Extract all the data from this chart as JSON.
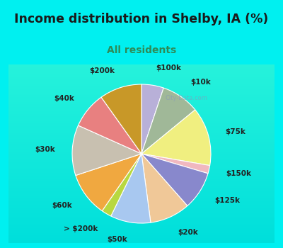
{
  "title": "Income distribution in Shelby, IA (%)",
  "subtitle": "All residents",
  "title_color": "#1a1a1a",
  "subtitle_color": "#2e8b57",
  "bg_cyan": "#00f0f0",
  "bg_chart": "#d8f0e0",
  "watermark": "City-Data.com",
  "slices": [
    {
      "label": "$100k",
      "value": 5.5,
      "color": "#b8b0d8"
    },
    {
      "label": "$10k",
      "value": 9.5,
      "color": "#a0b898"
    },
    {
      "label": "$75k",
      "value": 14.5,
      "color": "#f0ef80"
    },
    {
      "label": "$150k",
      "value": 2.0,
      "color": "#f0b8c0"
    },
    {
      "label": "$125k",
      "value": 9.5,
      "color": "#8888cc"
    },
    {
      "label": "$20k",
      "value": 10.0,
      "color": "#f0c898"
    },
    {
      "label": "$50k",
      "value": 10.0,
      "color": "#a8c8f0"
    },
    {
      "label": "> $200k",
      "value": 2.5,
      "color": "#b8d840"
    },
    {
      "label": "$60k",
      "value": 11.0,
      "color": "#f0a840"
    },
    {
      "label": "$30k",
      "value": 12.5,
      "color": "#c8c0b0"
    },
    {
      "label": "$40k",
      "value": 9.0,
      "color": "#e88080"
    },
    {
      "label": "$200k",
      "value": 10.5,
      "color": "#c89828"
    }
  ],
  "label_fontsize": 7.5,
  "title_fontsize": 12.5,
  "subtitle_fontsize": 10
}
